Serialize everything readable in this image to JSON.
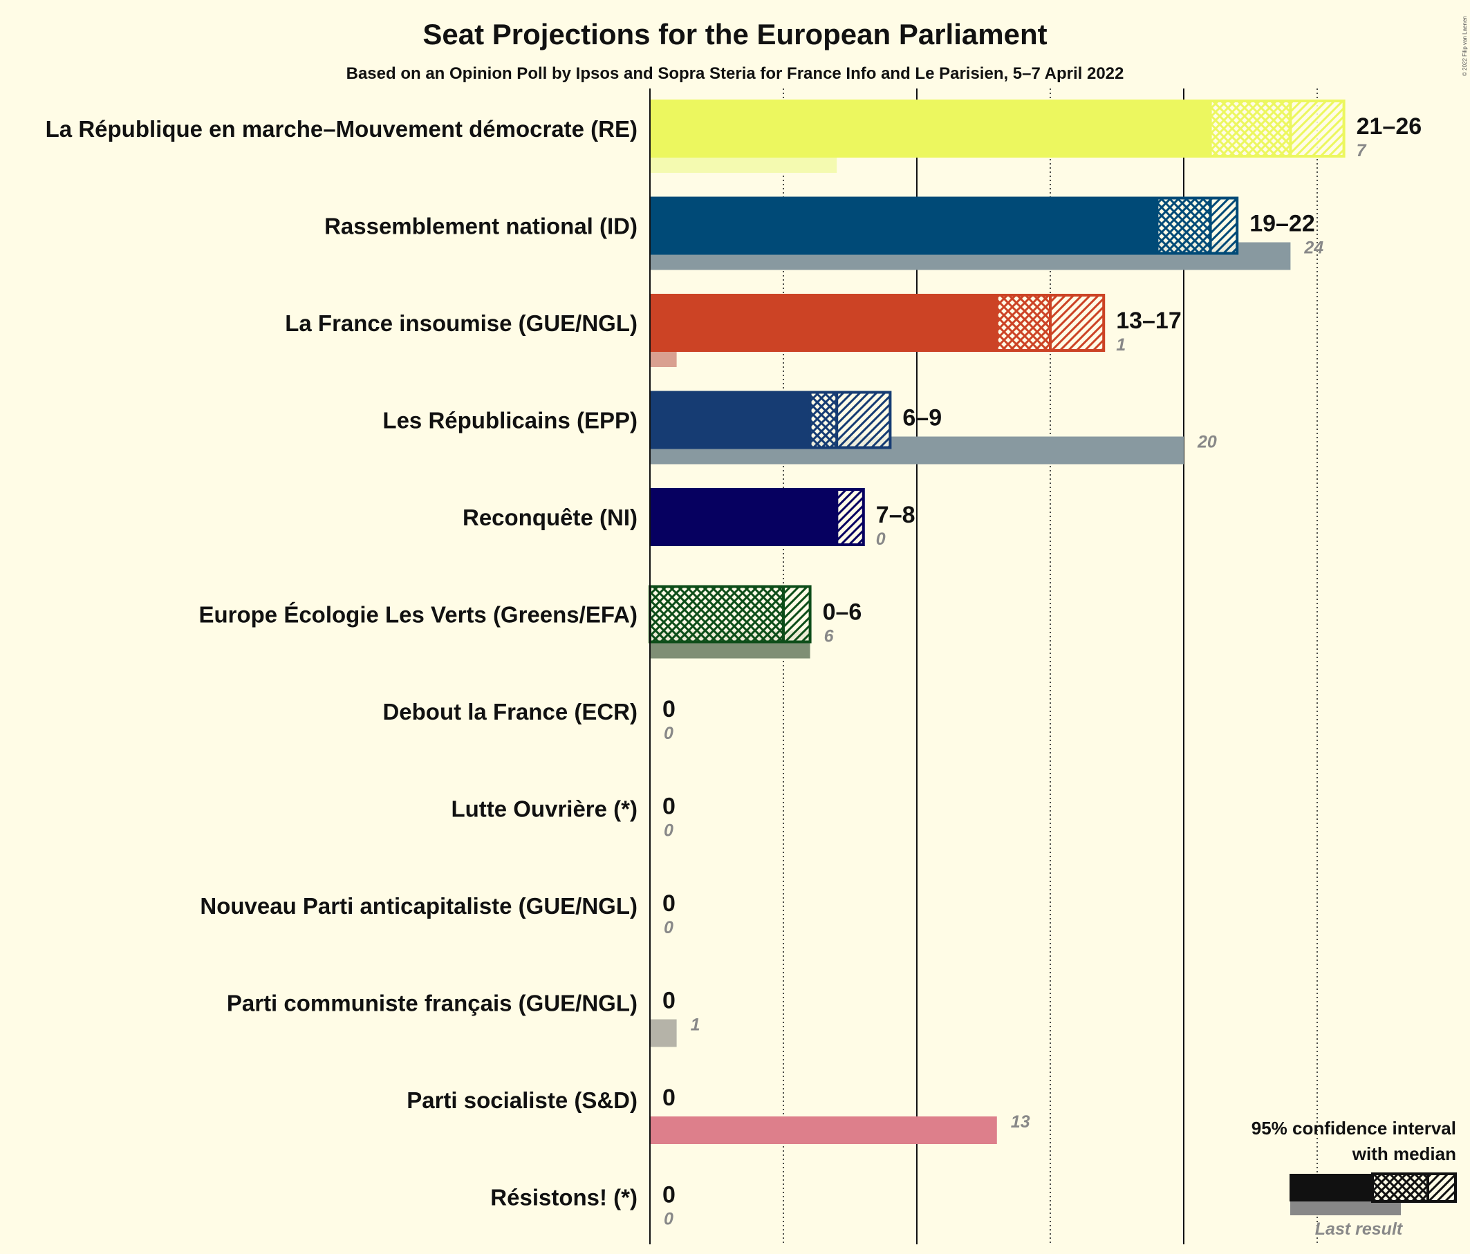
{
  "chart_data": {
    "type": "bar",
    "title": "Seat Projections for the European Parliament",
    "subtitle": "Based on an Opinion Poll by Ipsos and Sopra Steria for France Info and Le Parisien, 5–7 April 2022",
    "xlim": [
      0,
      26
    ],
    "gridlines": [
      5,
      10,
      15,
      20,
      25
    ],
    "parties": [
      {
        "name": "La République en marche–Mouvement démocrate (RE)",
        "low": 21,
        "median": 24,
        "high": 26,
        "range_label": "21–26",
        "last": 7,
        "last_label": "7",
        "color": "#ECF75F",
        "last_color": "#F4FAB0"
      },
      {
        "name": "Rassemblement national (ID)",
        "low": 19,
        "median": 21,
        "high": 22,
        "range_label": "19–22",
        "last": 24,
        "last_label": "24",
        "color": "#004A77",
        "last_color": "#8899A0"
      },
      {
        "name": "La France insoumise (GUE/NGL)",
        "low": 13,
        "median": 15,
        "high": 17,
        "range_label": "13–17",
        "last": 1,
        "last_label": "1",
        "color": "#CC4325",
        "last_color": "#D9A090"
      },
      {
        "name": "Les Républicains (EPP)",
        "low": 6,
        "median": 7,
        "high": 9,
        "range_label": "6–9",
        "last": 20,
        "last_label": "20",
        "color": "#163C73",
        "last_color": "#8899A0"
      },
      {
        "name": "Reconquête (NI)",
        "low": 7,
        "median": 7,
        "high": 8,
        "range_label": "7–8",
        "last": 0,
        "last_label": "0",
        "color": "#060060",
        "last_color": "#888888"
      },
      {
        "name": "Europe Écologie Les Verts (Greens/EFA)",
        "low": 0,
        "median": 5,
        "high": 6,
        "range_label": "0–6",
        "last": 6,
        "last_label": "6",
        "color": "#0D4D19",
        "last_color": "#7F8F75"
      },
      {
        "name": "Debout la France (ECR)",
        "low": 0,
        "median": 0,
        "high": 0,
        "range_label": "0",
        "last": 0,
        "last_label": "0",
        "color": "#111111",
        "last_color": "#888888"
      },
      {
        "name": "Lutte Ouvrière (*)",
        "low": 0,
        "median": 0,
        "high": 0,
        "range_label": "0",
        "last": 0,
        "last_label": "0",
        "color": "#111111",
        "last_color": "#888888"
      },
      {
        "name": "Nouveau Parti anticapitaliste (GUE/NGL)",
        "low": 0,
        "median": 0,
        "high": 0,
        "range_label": "0",
        "last": 0,
        "last_label": "0",
        "color": "#111111",
        "last_color": "#888888"
      },
      {
        "name": "Parti communiste français (GUE/NGL)",
        "low": 0,
        "median": 0,
        "high": 0,
        "range_label": "0",
        "last": 1,
        "last_label": "1",
        "color": "#111111",
        "last_color": "#B5B3A8"
      },
      {
        "name": "Parti socialiste (S&D)",
        "low": 0,
        "median": 0,
        "high": 0,
        "range_label": "0",
        "last": 13,
        "last_label": "13",
        "color": "#111111",
        "last_color": "#DD7F8B"
      },
      {
        "name": "Résistons! (*)",
        "low": 0,
        "median": 0,
        "high": 0,
        "range_label": "0",
        "last": 0,
        "last_label": "0",
        "color": "#111111",
        "last_color": "#888888"
      }
    ],
    "legend": {
      "line1": "95% confidence interval",
      "line2": "with median",
      "last_result": "Last result",
      "placement": "bottom-right"
    }
  },
  "copyright": "© 2022 Filip van Laenen"
}
